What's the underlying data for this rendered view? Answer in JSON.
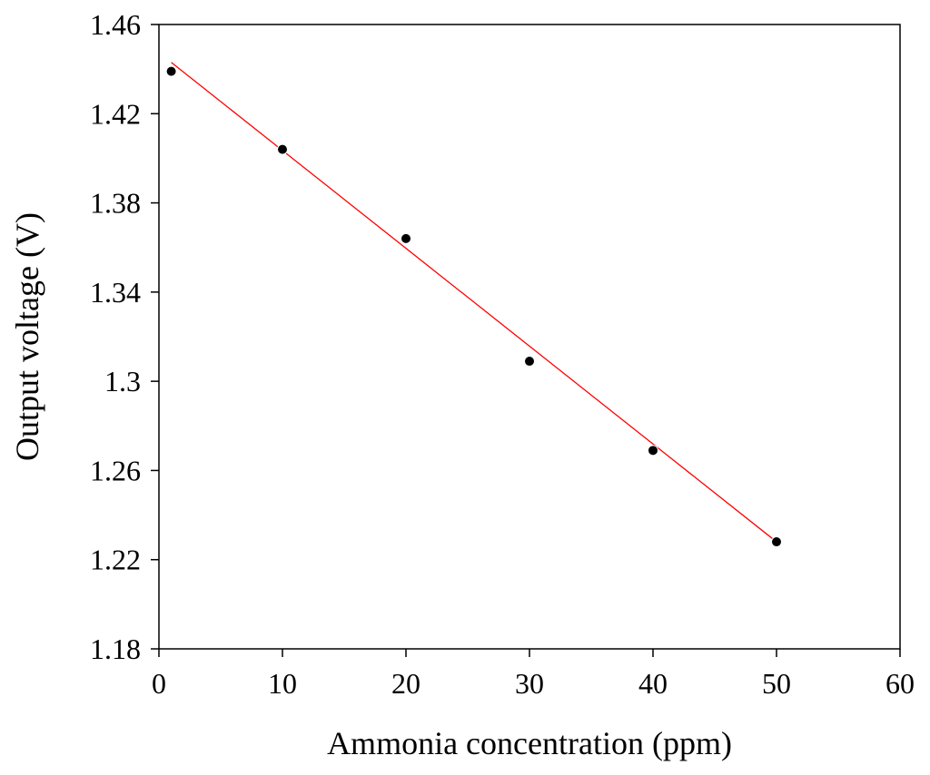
{
  "chart_data": {
    "type": "scatter",
    "title": "",
    "xlabel": "Ammonia concentration (ppm)",
    "ylabel": "Output voltage (V)",
    "xlim": [
      0,
      60
    ],
    "ylim": [
      1.18,
      1.46
    ],
    "xticks": [
      0,
      10,
      20,
      30,
      40,
      50,
      60
    ],
    "xtick_labels": [
      "0",
      "10",
      "20",
      "30",
      "40",
      "50",
      "60"
    ],
    "yticks": [
      1.18,
      1.22,
      1.26,
      1.3,
      1.34,
      1.38,
      1.42,
      1.46
    ],
    "ytick_labels": [
      "1.18",
      "1.22",
      "1.26",
      "1.3",
      "1.34",
      "1.38",
      "1.42",
      "1.46"
    ],
    "grid": false,
    "legend": "none",
    "series": [
      {
        "type": "scatter",
        "color": "#000000",
        "x": [
          1,
          10,
          20,
          30,
          40,
          50
        ],
        "y": [
          1.439,
          1.404,
          1.364,
          1.309,
          1.269,
          1.228
        ]
      },
      {
        "type": "line",
        "color": "#ff0000",
        "x": [
          1,
          50
        ],
        "y": [
          1.443,
          1.228
        ]
      }
    ]
  }
}
